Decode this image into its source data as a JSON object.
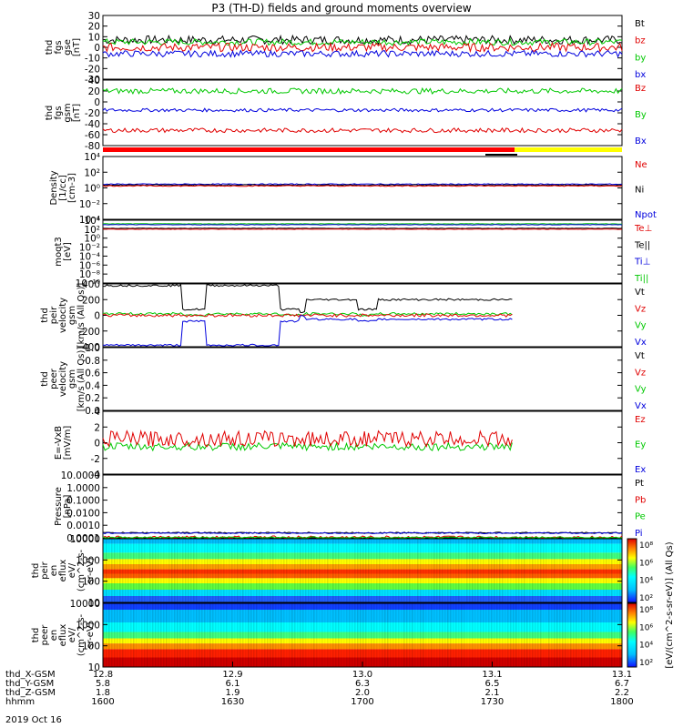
{
  "title": "P3 (TH-D) fields and ground moments overview",
  "colors": {
    "black": "#000000",
    "red": "#e00000",
    "green": "#00c800",
    "blue": "#0000dd",
    "yellow": "#ffff00",
    "bar_red": "#ff0000"
  },
  "chart_data": [
    {
      "type": "line",
      "title": "fgs gse",
      "ylabel": [
        "thd",
        "fgs",
        "gse",
        "[nT]"
      ],
      "ylim": [
        -30,
        30
      ],
      "yticks": [
        "30",
        "20",
        "10",
        "0",
        "-10",
        "-20",
        "-30"
      ],
      "legend": [
        {
          "label": "Bt",
          "color": "#000000"
        },
        {
          "label": "bz",
          "color": "#e00000"
        },
        {
          "label": "by",
          "color": "#00c800"
        },
        {
          "label": "bx",
          "color": "#0000dd"
        }
      ],
      "series": [
        {
          "name": "Bt",
          "color": "#000000",
          "level": 7,
          "amp": 4
        },
        {
          "name": "by",
          "color": "#00c800",
          "level": 5,
          "amp": 3
        },
        {
          "name": "bz",
          "color": "#e00000",
          "level": 0,
          "amp": 4
        },
        {
          "name": "bx",
          "color": "#0000dd",
          "level": -6,
          "amp": 3
        }
      ]
    },
    {
      "type": "line",
      "title": "fgs gsm",
      "ylabel": [
        "thd",
        "fgs",
        "gsm",
        "[nT]"
      ],
      "ylim": [
        -80,
        40
      ],
      "yticks": [
        "40",
        "20",
        "0",
        "-20",
        "-40",
        "-60",
        "-80"
      ],
      "legend": [
        {
          "label": "Bz",
          "color": "#e00000"
        },
        {
          "label": "By",
          "color": "#00c800"
        },
        {
          "label": "Bx",
          "color": "#0000dd"
        }
      ],
      "series": [
        {
          "name": "By",
          "color": "#00c800",
          "level": 20,
          "amp": 5
        },
        {
          "name": "Bx",
          "color": "#0000dd",
          "level": -15,
          "amp": 3
        },
        {
          "name": "Bz",
          "color": "#e00000",
          "level": -52,
          "amp": 4
        }
      ]
    },
    {
      "type": "line",
      "title": "Density",
      "ylabel": [
        "Density",
        "[1/cc]",
        "[cm-3]"
      ],
      "ylim": [
        0.0001,
        10000
      ],
      "log": true,
      "yticks": [
        "10⁴",
        "10²",
        "10⁰",
        "10⁻²",
        "10⁻⁴"
      ],
      "legend": [
        {
          "label": "Ne",
          "color": "#e00000"
        },
        {
          "label": "Ni",
          "color": "#000000"
        },
        {
          "label": "Npot",
          "color": "#0000dd"
        }
      ],
      "series": [
        {
          "name": "Npot",
          "color": "#0000dd",
          "level": 3,
          "amp": 0.1
        },
        {
          "name": "Ni",
          "color": "#000000",
          "level": 2.3,
          "amp": 0.1
        },
        {
          "name": "Ne",
          "color": "#e00000",
          "level": 1.8,
          "amp": 0.1
        }
      ]
    },
    {
      "type": "line",
      "title": "moqt3",
      "ylabel": [
        "moqt3",
        "[eV]"
      ],
      "ylim": [
        -10,
        4
      ],
      "yticks": [
        "10⁴",
        "10²",
        "10⁰",
        "10⁻²",
        "10⁻⁴",
        "10⁻⁶",
        "10⁻⁸",
        "10⁻¹⁰"
      ],
      "legend": [
        {
          "label": "Te⊥",
          "color": "#e00000"
        },
        {
          "label": "Te||",
          "color": "#000000"
        },
        {
          "label": "Ti⊥",
          "color": "#0000dd"
        },
        {
          "label": "Ti||",
          "color": "#00c800"
        }
      ],
      "series": [
        {
          "name": "Ti||",
          "color": "#00c800",
          "level": 3.2,
          "amp": 0.05
        },
        {
          "name": "Ti⊥",
          "color": "#0000dd",
          "level": 3.0,
          "amp": 0.05
        },
        {
          "name": "Te||",
          "color": "#000000",
          "level": 2.2,
          "amp": 0.05
        },
        {
          "name": "Te⊥",
          "color": "#e00000",
          "level": 2.0,
          "amp": 0.05
        }
      ]
    },
    {
      "type": "line",
      "title": "peir velocity gsm",
      "ylabel": [
        "thd",
        "peir",
        "velocity",
        "gsm",
        "[km/s (All Qs)]"
      ],
      "ylim": [
        -400,
        400
      ],
      "yticks": [
        "400",
        "200",
        "0",
        "-200",
        "-400"
      ],
      "legend": [
        {
          "label": "Vt",
          "color": "#000000"
        },
        {
          "label": "Vz",
          "color": "#e00000"
        },
        {
          "label": "Vy",
          "color": "#00c800"
        },
        {
          "label": "Vx",
          "color": "#0000dd"
        }
      ],
      "series": [
        {
          "name": "Vt",
          "color": "#000000",
          "level": 200,
          "amp": 12
        },
        {
          "name": "Vy",
          "color": "#00c800",
          "level": 20,
          "amp": 15
        },
        {
          "name": "Vz",
          "color": "#e00000",
          "level": 0,
          "amp": 20
        },
        {
          "name": "Vx",
          "color": "#0000dd",
          "level": -150,
          "amp": 12
        }
      ]
    },
    {
      "type": "line",
      "title": "peer velocity gsm",
      "ylabel": [
        "thd",
        "peer",
        "velocity",
        "gsm",
        "[km/s (All Qs)]"
      ],
      "ylim": [
        0,
        1
      ],
      "yticks": [
        "1.0",
        "0.8",
        "0.6",
        "0.4",
        "0.2",
        "0.0"
      ],
      "legend": [
        {
          "label": "Vt",
          "color": "#000000"
        },
        {
          "label": "Vz",
          "color": "#e00000"
        },
        {
          "label": "Vy",
          "color": "#00c800"
        },
        {
          "label": "Vx",
          "color": "#0000dd"
        }
      ],
      "series": []
    },
    {
      "type": "line",
      "title": "E=-VxB",
      "ylabel": [
        "E=-VxB",
        "[mV/m]"
      ],
      "ylim": [
        -4,
        4
      ],
      "yticks": [
        "4",
        "2",
        "0",
        "-2",
        "-4"
      ],
      "legend": [
        {
          "label": "Ez",
          "color": "#e00000"
        },
        {
          "label": "Ey",
          "color": "#00c800"
        },
        {
          "label": "Ex",
          "color": "#0000dd"
        }
      ],
      "series": [
        {
          "name": "Ey",
          "color": "#00c800",
          "level": -0.5,
          "amp": 0.5
        },
        {
          "name": "Ez",
          "color": "#e00000",
          "level": 0.5,
          "amp": 1.0
        }
      ]
    },
    {
      "type": "line",
      "title": "Pressure",
      "ylabel": [
        "Pressure",
        "[nPa]"
      ],
      "ylim": [
        0.0001,
        10
      ],
      "yticks": [
        "10.0000",
        "1.0000",
        "0.1000",
        "0.0100",
        "0.0010",
        "0.0001"
      ],
      "legend": [
        {
          "label": "Pt",
          "color": "#000000"
        },
        {
          "label": "Pb",
          "color": "#e00000"
        },
        {
          "label": "Pe",
          "color": "#00c800"
        },
        {
          "label": "Pi",
          "color": "#0000dd"
        }
      ],
      "series": [
        {
          "name": "Pt",
          "color": "#000000",
          "level": 0.8,
          "amp": 0.1
        },
        {
          "name": "Pi",
          "color": "#0000dd",
          "level": 0.75,
          "amp": 0.1
        },
        {
          "name": "Pb",
          "color": "#e00000",
          "level": 0.05,
          "amp": 0.25
        },
        {
          "name": "Pe",
          "color": "#00c800",
          "level": 0.02,
          "amp": 0.15
        }
      ]
    },
    {
      "type": "heatmap",
      "title": "peir en eflux",
      "ylabel": [
        "thd",
        "peir",
        "en",
        "eflux",
        "eV/",
        "(cm^2-s-",
        "sr-eV)"
      ],
      "ylim": [
        5,
        30000
      ],
      "log": true,
      "yticks": [
        "10000",
        "1000",
        "100",
        "10"
      ],
      "colorbar_ticks": [
        "10⁸",
        "10⁶",
        "10⁴",
        "10²"
      ]
    },
    {
      "type": "heatmap",
      "title": "peer en eflux",
      "ylabel": [
        "thd",
        "peer",
        "en",
        "eflux",
        "eV/",
        "(cm^2-s-",
        "sr-eV)"
      ],
      "ylim": [
        5,
        30000
      ],
      "log": true,
      "yticks": [
        "10000",
        "1000",
        "100",
        "10"
      ],
      "colorbar_ticks": [
        "10⁸",
        "10⁶",
        "10⁴",
        "10²"
      ]
    }
  ],
  "colorbar_label": "[eV/(cm^2-s-sr-eV)] (All Qs)",
  "xaxis": {
    "rows": [
      {
        "label": "thd_X-GSM",
        "values": [
          "12.8",
          "12.9",
          "13.0",
          "13.1",
          "13.1"
        ]
      },
      {
        "label": "thd_Y-GSM",
        "values": [
          "5.8",
          "6.1",
          "6.3",
          "6.5",
          "6.7"
        ]
      },
      {
        "label": "thd_Z-GSM",
        "values": [
          "1.8",
          "1.9",
          "2.0",
          "2.1",
          "2.2"
        ]
      },
      {
        "label": "hhmm",
        "values": [
          "1600",
          "1630",
          "1700",
          "1730",
          "1800"
        ]
      }
    ],
    "date": "2019 Oct 16"
  }
}
